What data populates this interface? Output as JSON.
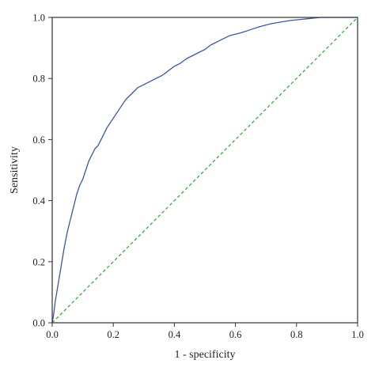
{
  "chart_data": {
    "type": "line",
    "xlabel": "1 - specificity",
    "ylabel": "Sensitivity",
    "xlim": [
      0.0,
      1.0
    ],
    "ylim": [
      0.0,
      1.0
    ],
    "x_ticks": [
      "0.0",
      "0.2",
      "0.4",
      "0.6",
      "0.8",
      "1.0"
    ],
    "y_ticks": [
      "0.0",
      "0.2",
      "0.4",
      "0.6",
      "0.8",
      "1.0"
    ],
    "grid": false,
    "legend": "none",
    "series": [
      {
        "style": "solid",
        "color": "#3d55a8",
        "x": [
          0.0,
          0.005,
          0.01,
          0.02,
          0.03,
          0.04,
          0.05,
          0.06,
          0.07,
          0.08,
          0.09,
          0.1,
          0.11,
          0.12,
          0.13,
          0.14,
          0.15,
          0.16,
          0.18,
          0.2,
          0.22,
          0.24,
          0.26,
          0.28,
          0.3,
          0.32,
          0.34,
          0.36,
          0.38,
          0.4,
          0.42,
          0.44,
          0.46,
          0.48,
          0.5,
          0.52,
          0.55,
          0.58,
          0.6,
          0.62,
          0.65,
          0.68,
          0.7,
          0.72,
          0.75,
          0.78,
          0.8,
          0.83,
          0.86,
          0.88,
          0.9,
          0.95,
          1.0
        ],
        "y": [
          0.0,
          0.03,
          0.07,
          0.13,
          0.19,
          0.25,
          0.3,
          0.34,
          0.38,
          0.42,
          0.45,
          0.47,
          0.5,
          0.53,
          0.55,
          0.57,
          0.58,
          0.6,
          0.64,
          0.67,
          0.7,
          0.73,
          0.75,
          0.77,
          0.78,
          0.79,
          0.8,
          0.81,
          0.825,
          0.84,
          0.85,
          0.865,
          0.875,
          0.885,
          0.895,
          0.91,
          0.925,
          0.94,
          0.945,
          0.95,
          0.96,
          0.97,
          0.975,
          0.98,
          0.985,
          0.99,
          0.992,
          0.995,
          0.998,
          1.0,
          1.0,
          1.0,
          1.0
        ]
      },
      {
        "style": "dashed",
        "color": "#2fa02f",
        "x": [
          0.0,
          1.0
        ],
        "y": [
          0.0,
          1.0
        ]
      }
    ]
  }
}
